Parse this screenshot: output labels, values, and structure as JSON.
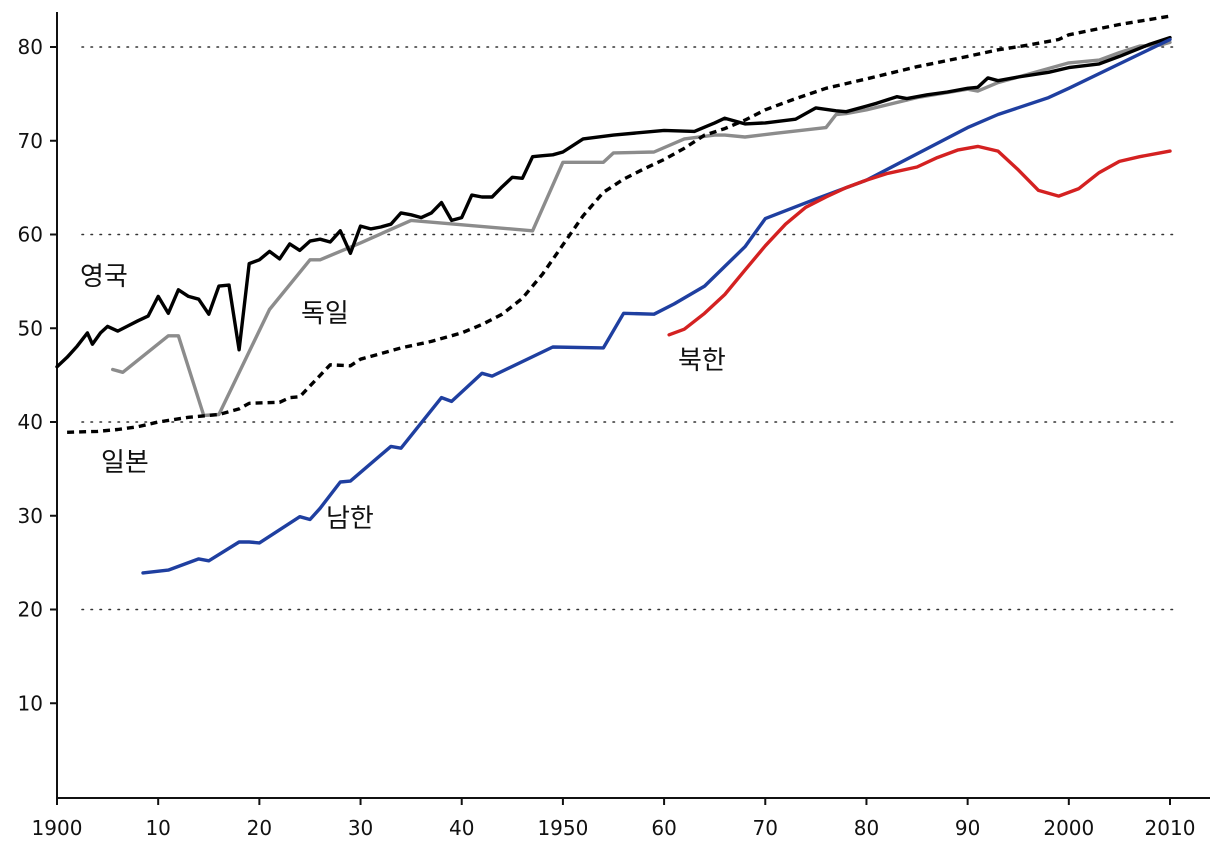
{
  "chart_data": {
    "type": "line",
    "title": "",
    "xlabel": "",
    "ylabel": "",
    "xlim": [
      1900,
      2010
    ],
    "ylim": [
      0,
      85
    ],
    "grid": "dotted horizontal lines at 20, 40, 60, 80",
    "x_ticks": [
      {
        "value": 1900,
        "label": "1900"
      },
      {
        "value": 1910,
        "label": "10"
      },
      {
        "value": 1920,
        "label": "20"
      },
      {
        "value": 1930,
        "label": "30"
      },
      {
        "value": 1940,
        "label": "40"
      },
      {
        "value": 1950,
        "label": "1950"
      },
      {
        "value": 1960,
        "label": "60"
      },
      {
        "value": 1970,
        "label": "70"
      },
      {
        "value": 1980,
        "label": "80"
      },
      {
        "value": 1990,
        "label": "90"
      },
      {
        "value": 2000,
        "label": "2000"
      },
      {
        "value": 2010,
        "label": "2010"
      }
    ],
    "y_ticks": [
      10,
      20,
      30,
      40,
      50,
      60,
      70,
      80
    ],
    "grid_y": [
      20,
      40,
      60,
      80
    ],
    "series": [
      {
        "name": "영국",
        "color": "#000000",
        "style": "solid",
        "points": [
          [
            1900,
            45.9
          ],
          [
            1901,
            46.9
          ],
          [
            1902,
            48.1
          ],
          [
            1903,
            49.5
          ],
          [
            1903.5,
            48.3
          ],
          [
            1904.3,
            49.5
          ],
          [
            1905,
            50.2
          ],
          [
            1906,
            49.7
          ],
          [
            1908,
            50.8
          ],
          [
            1909,
            51.3
          ],
          [
            1910,
            53.4
          ],
          [
            1911,
            51.6
          ],
          [
            1912,
            54.1
          ],
          [
            1913,
            53.4
          ],
          [
            1914,
            53.1
          ],
          [
            1915,
            51.5
          ],
          [
            1916,
            54.5
          ],
          [
            1917,
            54.6
          ],
          [
            1918,
            47.7
          ],
          [
            1919,
            56.9
          ],
          [
            1920,
            57.3
          ],
          [
            1921,
            58.2
          ],
          [
            1922,
            57.4
          ],
          [
            1923,
            59.0
          ],
          [
            1924,
            58.3
          ],
          [
            1925,
            59.3
          ],
          [
            1926,
            59.5
          ],
          [
            1927,
            59.2
          ],
          [
            1928,
            60.4
          ],
          [
            1929,
            58.0
          ],
          [
            1930,
            60.9
          ],
          [
            1931,
            60.6
          ],
          [
            1932,
            60.8
          ],
          [
            1933,
            61.1
          ],
          [
            1934,
            62.3
          ],
          [
            1935,
            62.1
          ],
          [
            1936,
            61.8
          ],
          [
            1937,
            62.3
          ],
          [
            1938,
            63.4
          ],
          [
            1939,
            61.5
          ],
          [
            1940,
            61.8
          ],
          [
            1941,
            64.2
          ],
          [
            1942,
            64.0
          ],
          [
            1943,
            64.0
          ],
          [
            1944,
            65.1
          ],
          [
            1945,
            66.1
          ],
          [
            1946,
            66.0
          ],
          [
            1947,
            68.3
          ],
          [
            1948,
            68.4
          ],
          [
            1949,
            68.5
          ],
          [
            1950,
            68.8
          ],
          [
            1952,
            70.2
          ],
          [
            1955,
            70.6
          ],
          [
            1960,
            71.1
          ],
          [
            1963,
            71.0
          ],
          [
            1965,
            71.9
          ],
          [
            1966,
            72.4
          ],
          [
            1968,
            71.8
          ],
          [
            1970,
            71.9
          ],
          [
            1973,
            72.3
          ],
          [
            1975,
            73.5
          ],
          [
            1977,
            73.2
          ],
          [
            1978,
            73.1
          ],
          [
            1980,
            73.7
          ],
          [
            1981,
            74.0
          ],
          [
            1983,
            74.7
          ],
          [
            1984,
            74.5
          ],
          [
            1986,
            74.9
          ],
          [
            1988,
            75.2
          ],
          [
            1990,
            75.6
          ],
          [
            1991,
            75.7
          ],
          [
            1992,
            76.7
          ],
          [
            1993,
            76.4
          ],
          [
            1995,
            76.8
          ],
          [
            1998,
            77.3
          ],
          [
            2000,
            77.8
          ],
          [
            2003,
            78.2
          ],
          [
            2005,
            79.0
          ],
          [
            2008,
            80.3
          ],
          [
            2010,
            81.0
          ]
        ]
      },
      {
        "name": "독일",
        "color": "#8c8c8c",
        "style": "solid",
        "points": [
          [
            1905.5,
            45.6
          ],
          [
            1906.5,
            45.3
          ],
          [
            1911,
            49.2
          ],
          [
            1912,
            49.2
          ],
          [
            1914.5,
            40.7
          ],
          [
            1916,
            40.8
          ],
          [
            1921,
            52.0
          ],
          [
            1925,
            57.3
          ],
          [
            1926,
            57.3
          ],
          [
            1930,
            59.1
          ],
          [
            1935,
            61.5
          ],
          [
            1947,
            60.4
          ],
          [
            1950,
            67.7
          ],
          [
            1954,
            67.7
          ],
          [
            1955,
            68.7
          ],
          [
            1959,
            68.8
          ],
          [
            1962,
            70.2
          ],
          [
            1965,
            70.6
          ],
          [
            1966,
            70.6
          ],
          [
            1968,
            70.4
          ],
          [
            1971,
            70.8
          ],
          [
            1976,
            71.4
          ],
          [
            1977,
            72.8
          ],
          [
            1978,
            72.9
          ],
          [
            1980,
            73.3
          ],
          [
            1985,
            74.6
          ],
          [
            1990,
            75.5
          ],
          [
            1991,
            75.3
          ],
          [
            1993,
            76.2
          ],
          [
            1995,
            76.8
          ],
          [
            2000,
            78.3
          ],
          [
            2003,
            78.6
          ],
          [
            2005,
            79.4
          ],
          [
            2007,
            80.1
          ],
          [
            2009,
            80.2
          ],
          [
            2010,
            80.5
          ]
        ]
      },
      {
        "name": "일본",
        "color": "#000000",
        "style": "dashed",
        "points": [
          [
            1901,
            38.9
          ],
          [
            1904,
            39.0
          ],
          [
            1906,
            39.2
          ],
          [
            1908,
            39.5
          ],
          [
            1910,
            40.0
          ],
          [
            1913,
            40.5
          ],
          [
            1916,
            40.8
          ],
          [
            1918,
            41.4
          ],
          [
            1919,
            42.0
          ],
          [
            1922,
            42.1
          ],
          [
            1923,
            42.6
          ],
          [
            1924,
            42.7
          ],
          [
            1927,
            46.1
          ],
          [
            1929,
            46.0
          ],
          [
            1930,
            46.7
          ],
          [
            1932,
            47.3
          ],
          [
            1934,
            47.9
          ],
          [
            1937,
            48.6
          ],
          [
            1940,
            49.5
          ],
          [
            1942,
            50.4
          ],
          [
            1944,
            51.5
          ],
          [
            1946,
            53.2
          ],
          [
            1948,
            55.8
          ],
          [
            1950,
            58.9
          ],
          [
            1952,
            62.0
          ],
          [
            1954,
            64.5
          ],
          [
            1956,
            65.9
          ],
          [
            1958,
            67.0
          ],
          [
            1960,
            68.0
          ],
          [
            1962,
            69.2
          ],
          [
            1964,
            70.6
          ],
          [
            1966,
            71.3
          ],
          [
            1968,
            72.2
          ],
          [
            1970,
            73.3
          ],
          [
            1973,
            74.5
          ],
          [
            1976,
            75.6
          ],
          [
            1980,
            76.6
          ],
          [
            1985,
            77.9
          ],
          [
            1990,
            79.0
          ],
          [
            1993,
            79.7
          ],
          [
            1996,
            80.2
          ],
          [
            1999,
            80.8
          ],
          [
            2000,
            81.3
          ],
          [
            2005,
            82.4
          ],
          [
            2010,
            83.3
          ]
        ]
      },
      {
        "name": "남한",
        "color": "#1f3fa0",
        "style": "solid",
        "points": [
          [
            1908.5,
            23.9
          ],
          [
            1911,
            24.2
          ],
          [
            1914,
            25.4
          ],
          [
            1915,
            25.2
          ],
          [
            1918,
            27.2
          ],
          [
            1919,
            27.2
          ],
          [
            1920,
            27.1
          ],
          [
            1924,
            29.9
          ],
          [
            1925,
            29.6
          ],
          [
            1926,
            30.8
          ],
          [
            1928,
            33.6
          ],
          [
            1929,
            33.7
          ],
          [
            1933,
            37.4
          ],
          [
            1934,
            37.2
          ],
          [
            1938,
            42.6
          ],
          [
            1939,
            42.2
          ],
          [
            1942,
            45.2
          ],
          [
            1943,
            44.9
          ],
          [
            1949,
            48.0
          ],
          [
            1954,
            47.9
          ],
          [
            1956,
            51.6
          ],
          [
            1959,
            51.5
          ],
          [
            1961,
            52.6
          ],
          [
            1964,
            54.5
          ],
          [
            1966,
            56.6
          ],
          [
            1968,
            58.7
          ],
          [
            1970,
            61.7
          ],
          [
            1975,
            63.8
          ],
          [
            1980,
            65.8
          ],
          [
            1985,
            68.6
          ],
          [
            1990,
            71.4
          ],
          [
            1993,
            72.8
          ],
          [
            1998,
            74.6
          ],
          [
            2000,
            75.6
          ],
          [
            2005,
            78.2
          ],
          [
            2010,
            80.8
          ]
        ]
      },
      {
        "name": "북한",
        "color": "#d42121",
        "style": "solid",
        "points": [
          [
            1960.5,
            49.3
          ],
          [
            1962,
            49.9
          ],
          [
            1964,
            51.6
          ],
          [
            1966,
            53.6
          ],
          [
            1968,
            56.2
          ],
          [
            1970,
            58.8
          ],
          [
            1972,
            61.1
          ],
          [
            1974,
            62.9
          ],
          [
            1976,
            64.0
          ],
          [
            1978,
            65.0
          ],
          [
            1980,
            65.8
          ],
          [
            1982,
            66.5
          ],
          [
            1985,
            67.2
          ],
          [
            1987,
            68.2
          ],
          [
            1989,
            69.0
          ],
          [
            1991,
            69.4
          ],
          [
            1993,
            68.9
          ],
          [
            1995,
            66.9
          ],
          [
            1997,
            64.7
          ],
          [
            1999,
            64.1
          ],
          [
            2001,
            64.9
          ],
          [
            2003,
            66.6
          ],
          [
            2005,
            67.8
          ],
          [
            2007,
            68.3
          ],
          [
            2009,
            68.7
          ],
          [
            2010,
            68.9
          ]
        ]
      }
    ],
    "annotations": [
      {
        "series": "영국",
        "text": "영국"
      },
      {
        "series": "독일",
        "text": "독일"
      },
      {
        "series": "일본",
        "text": "일본"
      },
      {
        "series": "남한",
        "text": "남한"
      },
      {
        "series": "북한",
        "text": "북한"
      }
    ]
  }
}
